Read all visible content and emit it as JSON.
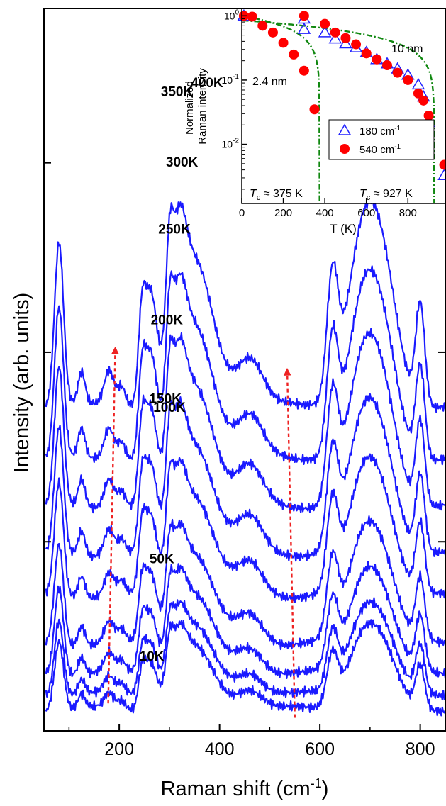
{
  "chart_data": [
    {
      "type": "line",
      "name": "main-raman-spectra",
      "xlabel": "Raman shift (cm",
      "xlabel_sup": "-1",
      "xlabel_tail": ")",
      "ylabel": "Intensity (arb. units)",
      "xlim": [
        50,
        850
      ],
      "xticks": [
        200,
        400,
        600,
        800
      ],
      "grid": false,
      "line_color": "#1a1aff",
      "arrow_color": "#ee2222",
      "features": [
        [
          80,
          2.1,
          9
        ],
        [
          125,
          0.4,
          7
        ],
        [
          180,
          0.45,
          10
        ],
        [
          205,
          0.25,
          8
        ],
        [
          245,
          0.95,
          7
        ],
        [
          262,
          1.35,
          12
        ],
        [
          300,
          1.1,
          7
        ],
        [
          318,
          1.2,
          14
        ],
        [
          350,
          1.85,
          38
        ],
        [
          460,
          0.6,
          26
        ],
        [
          625,
          1.5,
          11
        ],
        [
          690,
          2.3,
          34
        ],
        [
          735,
          0.9,
          28
        ],
        [
          800,
          1.3,
          9
        ]
      ],
      "series": [
        {
          "label": "10K",
          "temperature": 10,
          "baseline": 0.0,
          "scale": 0.55,
          "slope": 0.0,
          "label_x": 265,
          "label_offset": 0.0
        },
        {
          "label": "50K",
          "temperature": 50,
          "baseline": 0.25,
          "scale": 0.6,
          "slope": 0.0,
          "label_x": 285,
          "label_offset": 1.7
        },
        {
          "label": "100K",
          "temperature": 100,
          "baseline": 0.6,
          "scale": 0.7,
          "slope": 0.0,
          "label_x": 300,
          "label_offset": 2.7
        },
        {
          "label": "150K",
          "temperature": 150,
          "baseline": 1.1,
          "scale": 0.8,
          "slope": 0.0,
          "label_x": 292,
          "label_offset": 2.9
        },
        {
          "label": "200K",
          "temperature": 200,
          "baseline": 1.9,
          "scale": 0.9,
          "slope": 0.0,
          "label_x": 295,
          "label_offset": 2.9
        },
        {
          "label": "250K",
          "temperature": 250,
          "baseline": 2.6,
          "scale": 1.0,
          "slope": 0.0,
          "label_x": 310,
          "label_offset": 2.9
        },
        {
          "label": "300K",
          "temperature": 300,
          "baseline": 3.4,
          "scale": 1.1,
          "slope": 0.0,
          "label_x": 325,
          "label_offset": 2.9
        },
        {
          "label": "350K",
          "temperature": 350,
          "baseline": 4.2,
          "scale": 1.2,
          "slope": 0.0,
          "label_x": 315,
          "label_offset": 3.1
        },
        {
          "label": "400K",
          "temperature": 400,
          "baseline": 5.1,
          "scale": 1.3,
          "slope": 0.0,
          "label_x": 375,
          "label_offset": 3.4
        }
      ],
      "arrows": [
        {
          "x_start": 178,
          "x_end": 192,
          "from": "10K",
          "to": "400K"
        },
        {
          "x_start": 550,
          "x_end": 535,
          "from": "10K",
          "to": "400K"
        }
      ]
    },
    {
      "type": "scatter",
      "name": "inset-normalized-intensity",
      "xlabel": "T (K)",
      "ylabel": "Normalized Raman intensity",
      "ylabel_lines": [
        "Normalized",
        "Raman intensity"
      ],
      "xlim": [
        0,
        980
      ],
      "ylim": [
        0.0012,
        1.3
      ],
      "yscale": "log",
      "xticks": [
        0,
        200,
        400,
        600,
        800
      ],
      "yticks": [
        0.01,
        0.1,
        1
      ],
      "ytick_labels": [
        "10",
        "10",
        "10"
      ],
      "ytick_sups": [
        "-2",
        "-1",
        "0"
      ],
      "grid": false,
      "legend_position": "bottom-right",
      "legend": [
        {
          "label": "180 cm",
          "sup": "-1",
          "marker": "open-triangle",
          "color": "#2222ff"
        },
        {
          "label": "540 cm",
          "sup": "-1",
          "marker": "filled-circle",
          "color": "#ff0000"
        }
      ],
      "annotations": {
        "film_thin": "2.4 nm",
        "film_thick": "10 nm",
        "tc_thin_symbol": "T",
        "tc_thin_sub": "c",
        "tc_thin_value": " ≈ 375 K",
        "tc_thick_symbol": "T",
        "tc_thick_sub": "c",
        "tc_thick_value": " ≈ 927 K"
      },
      "fit_color": "#118811",
      "fits": [
        {
          "name": "fit-2.4nm",
          "tc": 375,
          "amplitude": 1.0
        },
        {
          "name": "fit-10nm",
          "tc": 927,
          "amplitude": 0.85
        }
      ],
      "series": [
        {
          "name": "180 cm-1 (2.4 nm)",
          "marker": "open-triangle",
          "x": [
            10,
            300
          ],
          "y": [
            1.0,
            0.62
          ]
        },
        {
          "name": "540 cm-1 (2.4 nm)",
          "marker": "filled-circle",
          "x": [
            10,
            50,
            100,
            150,
            200,
            250,
            300,
            350
          ],
          "y": [
            1.0,
            0.97,
            0.7,
            0.55,
            0.38,
            0.25,
            0.14,
            0.035
          ]
        },
        {
          "name": "180 cm-1 (10 nm)",
          "marker": "open-triangle",
          "x": [
            300,
            400,
            450,
            500,
            550,
            600,
            650,
            700,
            750,
            800,
            850,
            875,
            900,
            975
          ],
          "y": [
            0.9,
            0.55,
            0.44,
            0.37,
            0.32,
            0.27,
            0.21,
            0.18,
            0.15,
            0.12,
            0.085,
            0.055,
            0.022,
            0.0033
          ]
        },
        {
          "name": "540 cm-1 (10 nm)",
          "marker": "filled-circle",
          "x": [
            300,
            400,
            450,
            500,
            550,
            600,
            650,
            700,
            750,
            800,
            850,
            875,
            900,
            975
          ],
          "y": [
            1.0,
            0.75,
            0.55,
            0.45,
            0.36,
            0.26,
            0.21,
            0.17,
            0.13,
            0.1,
            0.062,
            0.048,
            0.028,
            0.0048
          ]
        }
      ]
    }
  ]
}
